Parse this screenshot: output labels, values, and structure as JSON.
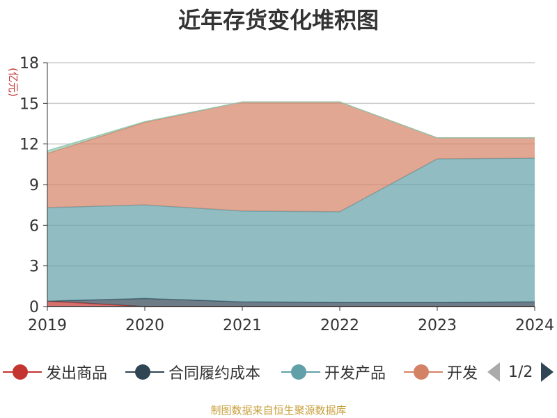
{
  "chart_data": {
    "type": "area",
    "stacked": true,
    "title": "近年存货变化堆积图",
    "ylabel": "(亿元)",
    "x": [
      "2019",
      "2020",
      "2021",
      "2022",
      "2023",
      "2024"
    ],
    "ylim": [
      0,
      18
    ],
    "yticks": [
      0,
      3,
      6,
      9,
      12,
      15,
      18
    ],
    "grid": true,
    "legend_position": "bottom",
    "series": [
      {
        "name": "发出商品",
        "color": "#c23531",
        "values": [
          0.4,
          0.0,
          0.0,
          0.0,
          0.0,
          0.0
        ]
      },
      {
        "name": "合同履约成本",
        "color": "#2f4554",
        "values": [
          0.0,
          0.6,
          0.35,
          0.3,
          0.3,
          0.35
        ]
      },
      {
        "name": "开发产品",
        "color": "#61a0a8",
        "values": [
          6.9,
          6.9,
          6.7,
          6.7,
          10.6,
          10.6
        ]
      },
      {
        "name": "开发成本",
        "color": "#d48265",
        "values": [
          4.0,
          6.1,
          8.05,
          8.1,
          1.55,
          1.5
        ]
      },
      {
        "name": "",
        "color": "#91c7ae",
        "values": [
          0.2,
          0.05,
          0.0,
          0.0,
          0.0,
          0.0
        ]
      }
    ]
  },
  "legend": {
    "items": [
      "发出商品",
      "合同履约成本",
      "开发产品",
      "开发"
    ],
    "page": "1/2"
  },
  "source": "制图数据来自恒生聚源数据库"
}
